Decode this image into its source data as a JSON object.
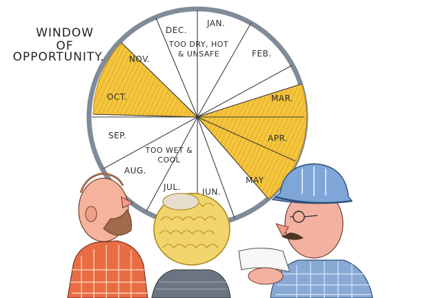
{
  "title": {
    "line1": "WINDOW",
    "line2": "OF",
    "line3": "OPPORTUNITY."
  },
  "wheel": {
    "months": [
      "JAN.",
      "FEB.",
      "MAR.",
      "APR.",
      "MAY",
      "JUN.",
      "JUL.",
      "AUG.",
      "SEP.",
      "OCT.",
      "NOV.",
      "DEC."
    ],
    "highlighted_months": [
      "MAR.",
      "APR.",
      "MAY",
      "OCT.",
      "NOV."
    ],
    "top_note": {
      "line1": "TOO DRY, HOT",
      "line2": "& UNSAFE"
    },
    "bottom_note": {
      "line1": "TOO WET &",
      "line2": "COOL"
    }
  },
  "colors": {
    "rim": "#8f9aa8",
    "highlight": "#f2c23a",
    "highlight_stroke": "#d99a18",
    "spoke": "#3a3a3a",
    "ink": "#2a2a2a"
  }
}
